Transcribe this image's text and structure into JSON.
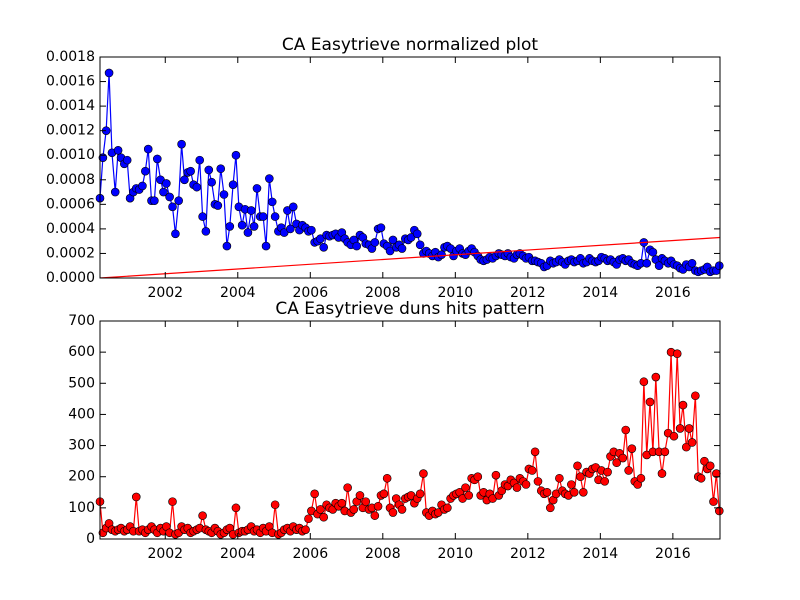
{
  "chart_data": [
    {
      "type": "line",
      "title": "CA Easytrieve normalized plot",
      "x": [
        2000.2,
        2000.28,
        2000.37,
        2000.45,
        2000.53,
        2000.62,
        2000.7,
        2000.78,
        2000.87,
        2000.95,
        2001.03,
        2001.12,
        2001.2,
        2001.28,
        2001.37,
        2001.45,
        2001.53,
        2001.62,
        2001.7,
        2001.78,
        2001.87,
        2001.95,
        2002.03,
        2002.12,
        2002.2,
        2002.28,
        2002.37,
        2002.45,
        2002.53,
        2002.62,
        2002.7,
        2002.78,
        2002.87,
        2002.95,
        2003.03,
        2003.12,
        2003.2,
        2003.28,
        2003.37,
        2003.45,
        2003.53,
        2003.62,
        2003.7,
        2003.78,
        2003.87,
        2003.95,
        2004.03,
        2004.12,
        2004.2,
        2004.28,
        2004.37,
        2004.45,
        2004.53,
        2004.62,
        2004.7,
        2004.78,
        2004.87,
        2004.95,
        2005.03,
        2005.12,
        2005.2,
        2005.28,
        2005.37,
        2005.45,
        2005.53,
        2005.62,
        2005.7,
        2005.78,
        2005.87,
        2005.95,
        2006.03,
        2006.12,
        2006.2,
        2006.28,
        2006.37,
        2006.45,
        2006.53,
        2006.62,
        2006.7,
        2006.78,
        2006.87,
        2006.95,
        2007.03,
        2007.12,
        2007.2,
        2007.28,
        2007.37,
        2007.45,
        2007.53,
        2007.62,
        2007.7,
        2007.78,
        2007.87,
        2007.95,
        2008.03,
        2008.12,
        2008.2,
        2008.28,
        2008.37,
        2008.45,
        2008.53,
        2008.62,
        2008.7,
        2008.78,
        2008.87,
        2008.95,
        2009.03,
        2009.12,
        2009.2,
        2009.28,
        2009.37,
        2009.45,
        2009.53,
        2009.62,
        2009.7,
        2009.78,
        2009.87,
        2009.95,
        2010.03,
        2010.12,
        2010.2,
        2010.28,
        2010.37,
        2010.45,
        2010.53,
        2010.62,
        2010.7,
        2010.78,
        2010.87,
        2010.95,
        2011.03,
        2011.12,
        2011.2,
        2011.28,
        2011.37,
        2011.45,
        2011.53,
        2011.62,
        2011.7,
        2011.78,
        2011.87,
        2011.95,
        2012.03,
        2012.12,
        2012.2,
        2012.28,
        2012.37,
        2012.45,
        2012.53,
        2012.62,
        2012.7,
        2012.78,
        2012.87,
        2012.95,
        2013.03,
        2013.12,
        2013.2,
        2013.28,
        2013.37,
        2013.45,
        2013.53,
        2013.62,
        2013.7,
        2013.78,
        2013.87,
        2013.95,
        2014.03,
        2014.12,
        2014.2,
        2014.28,
        2014.37,
        2014.45,
        2014.53,
        2014.62,
        2014.7,
        2014.78,
        2014.87,
        2014.95,
        2015.03,
        2015.12,
        2015.2,
        2015.28,
        2015.37,
        2015.45,
        2015.53,
        2015.62,
        2015.7,
        2015.78,
        2015.87,
        2015.95,
        2016.03,
        2016.12,
        2016.2,
        2016.28,
        2016.37,
        2016.45,
        2016.53,
        2016.62,
        2016.7,
        2016.78,
        2016.87,
        2016.95,
        2017.03,
        2017.12,
        2017.2,
        2017.28
      ],
      "series": [
        {
          "color": "#0000ff",
          "marker": true,
          "values": [
            0.00065,
            0.00098,
            0.0012,
            0.00167,
            0.00102,
            0.0007,
            0.00104,
            0.00098,
            0.00093,
            0.00096,
            0.00065,
            0.0007,
            0.00073,
            0.00072,
            0.00075,
            0.00087,
            0.00105,
            0.00063,
            0.00063,
            0.00097,
            0.0008,
            0.0007,
            0.00077,
            0.00066,
            0.00058,
            0.00036,
            0.00063,
            0.00109,
            0.0008,
            0.00086,
            0.00087,
            0.00076,
            0.00074,
            0.00096,
            0.0005,
            0.00038,
            0.00088,
            0.00078,
            0.0006,
            0.00059,
            0.00089,
            0.00068,
            0.00026,
            0.00042,
            0.00076,
            0.001,
            0.00058,
            0.00043,
            0.00056,
            0.00037,
            0.00055,
            0.00042,
            0.00073,
            0.0005,
            0.0005,
            0.00026,
            0.00081,
            0.00062,
            0.0005,
            0.00038,
            0.00041,
            0.00037,
            0.00055,
            0.0004,
            0.00058,
            0.00044,
            0.00039,
            0.00043,
            0.00041,
            0.00038,
            0.00039,
            0.00029,
            0.0003,
            0.00032,
            0.00025,
            0.00035,
            0.00034,
            0.00035,
            0.00036,
            0.00033,
            0.00037,
            0.00032,
            0.00029,
            0.00027,
            0.00031,
            0.00026,
            0.00035,
            0.00033,
            0.00028,
            0.00027,
            0.00024,
            0.00029,
            0.0004,
            0.00041,
            0.00028,
            0.00026,
            0.00022,
            0.00031,
            0.00025,
            0.00027,
            0.00024,
            0.00032,
            0.00031,
            0.00033,
            0.00039,
            0.00036,
            0.00027,
            0.0002,
            0.00022,
            0.0002,
            0.00018,
            0.00021,
            0.00017,
            0.00019,
            0.00025,
            0.00026,
            0.00024,
            0.00018,
            0.00022,
            0.00024,
            0.0002,
            0.00019,
            0.00022,
            0.00024,
            0.00021,
            0.00018,
            0.00015,
            0.00014,
            0.00015,
            0.00017,
            0.00016,
            0.00018,
            0.0002,
            0.00019,
            0.00018,
            0.0002,
            0.00017,
            0.00016,
            0.00019,
            0.0002,
            0.00018,
            0.00016,
            0.00017,
            0.00014,
            0.00014,
            0.00013,
            0.00012,
            9e-05,
            0.0001,
            0.00014,
            0.00012,
            0.00013,
            0.00015,
            0.00013,
            0.00011,
            0.00014,
            0.00015,
            0.00013,
            0.00014,
            0.00016,
            0.00012,
            0.00013,
            0.00016,
            0.00014,
            0.00013,
            0.00014,
            0.00017,
            0.00016,
            0.00014,
            0.00015,
            0.00013,
            0.00011,
            0.00015,
            0.00016,
            0.00014,
            0.00015,
            0.00012,
            0.00011,
            0.0001,
            0.00012,
            0.00029,
            0.00012,
            0.00023,
            0.00021,
            0.00015,
            0.0001,
            0.00016,
            0.00014,
            0.00012,
            0.00014,
            0.00011,
            0.0001,
            8e-05,
            7e-05,
            0.00011,
            9e-05,
            0.00012,
            6e-05,
            5e-05,
            6e-05,
            7e-05,
            9e-05,
            5e-05,
            6e-05,
            6e-05,
            0.0001
          ]
        },
        {
          "color": "#ff0000",
          "marker": false,
          "x": [
            2000.2,
            2017.3
          ],
          "values": [
            0,
            0.00033
          ]
        }
      ],
      "xlim": [
        2000.2,
        2017.3
      ],
      "xticks": [
        2002,
        2004,
        2006,
        2008,
        2010,
        2012,
        2014,
        2016
      ],
      "ylim": [
        0,
        0.0018
      ],
      "yticks": [
        {
          "value": 0,
          "label": "0.0000"
        },
        {
          "value": 0.0002,
          "label": "0.0002"
        },
        {
          "value": 0.0004,
          "label": "0.0004"
        },
        {
          "value": 0.0006,
          "label": "0.0006"
        },
        {
          "value": 0.0008,
          "label": "0.0008"
        },
        {
          "value": 0.001,
          "label": "0.0010"
        },
        {
          "value": 0.0012,
          "label": "0.0012"
        },
        {
          "value": 0.0014,
          "label": "0.0014"
        },
        {
          "value": 0.0016,
          "label": "0.0016"
        },
        {
          "value": 0.0018,
          "label": "0.0018"
        }
      ]
    },
    {
      "type": "line",
      "title": "CA Easytrieve duns hits pattern",
      "x": [
        2000.2,
        2000.28,
        2000.37,
        2000.45,
        2000.53,
        2000.62,
        2000.7,
        2000.78,
        2000.87,
        2000.95,
        2001.03,
        2001.12,
        2001.2,
        2001.28,
        2001.37,
        2001.45,
        2001.53,
        2001.62,
        2001.7,
        2001.78,
        2001.87,
        2001.95,
        2002.03,
        2002.12,
        2002.2,
        2002.28,
        2002.37,
        2002.45,
        2002.53,
        2002.62,
        2002.7,
        2002.78,
        2002.87,
        2002.95,
        2003.03,
        2003.12,
        2003.2,
        2003.28,
        2003.37,
        2003.45,
        2003.53,
        2003.62,
        2003.7,
        2003.78,
        2003.87,
        2003.95,
        2004.03,
        2004.12,
        2004.2,
        2004.28,
        2004.37,
        2004.45,
        2004.53,
        2004.62,
        2004.7,
        2004.78,
        2004.87,
        2004.95,
        2005.03,
        2005.12,
        2005.2,
        2005.28,
        2005.37,
        2005.45,
        2005.53,
        2005.62,
        2005.7,
        2005.78,
        2005.87,
        2005.95,
        2006.03,
        2006.12,
        2006.2,
        2006.28,
        2006.37,
        2006.45,
        2006.53,
        2006.62,
        2006.7,
        2006.78,
        2006.87,
        2006.95,
        2007.03,
        2007.12,
        2007.2,
        2007.28,
        2007.37,
        2007.45,
        2007.53,
        2007.62,
        2007.7,
        2007.78,
        2007.87,
        2007.95,
        2008.03,
        2008.12,
        2008.2,
        2008.28,
        2008.37,
        2008.45,
        2008.53,
        2008.62,
        2008.7,
        2008.78,
        2008.87,
        2008.95,
        2009.03,
        2009.12,
        2009.2,
        2009.28,
        2009.37,
        2009.45,
        2009.53,
        2009.62,
        2009.7,
        2009.78,
        2009.87,
        2009.95,
        2010.03,
        2010.12,
        2010.2,
        2010.28,
        2010.37,
        2010.45,
        2010.53,
        2010.62,
        2010.7,
        2010.78,
        2010.87,
        2010.95,
        2011.03,
        2011.12,
        2011.2,
        2011.28,
        2011.37,
        2011.45,
        2011.53,
        2011.62,
        2011.7,
        2011.78,
        2011.87,
        2011.95,
        2012.03,
        2012.12,
        2012.2,
        2012.28,
        2012.37,
        2012.45,
        2012.53,
        2012.62,
        2012.7,
        2012.78,
        2012.87,
        2012.95,
        2013.03,
        2013.12,
        2013.2,
        2013.28,
        2013.37,
        2013.45,
        2013.53,
        2013.62,
        2013.7,
        2013.78,
        2013.87,
        2013.95,
        2014.03,
        2014.12,
        2014.2,
        2014.28,
        2014.37,
        2014.45,
        2014.53,
        2014.62,
        2014.7,
        2014.78,
        2014.87,
        2014.95,
        2015.03,
        2015.12,
        2015.2,
        2015.28,
        2015.37,
        2015.45,
        2015.53,
        2015.62,
        2015.7,
        2015.78,
        2015.87,
        2015.95,
        2016.03,
        2016.12,
        2016.2,
        2016.28,
        2016.37,
        2016.45,
        2016.53,
        2016.62,
        2016.7,
        2016.78,
        2016.87,
        2016.95,
        2017.03,
        2017.12,
        2017.2,
        2017.28
      ],
      "series": [
        {
          "color": "#ff0000",
          "marker": true,
          "values": [
            120,
            20,
            35,
            50,
            30,
            25,
            30,
            35,
            25,
            30,
            40,
            25,
            135,
            25,
            30,
            20,
            30,
            40,
            30,
            20,
            35,
            25,
            40,
            20,
            120,
            15,
            20,
            40,
            30,
            35,
            20,
            25,
            30,
            35,
            75,
            30,
            25,
            20,
            35,
            25,
            15,
            20,
            30,
            35,
            15,
            100,
            20,
            25,
            25,
            30,
            40,
            25,
            30,
            20,
            35,
            25,
            40,
            20,
            110,
            15,
            20,
            30,
            35,
            25,
            40,
            30,
            35,
            25,
            30,
            65,
            90,
            145,
            80,
            95,
            70,
            110,
            100,
            95,
            115,
            105,
            115,
            90,
            165,
            85,
            95,
            120,
            140,
            100,
            120,
            95,
            100,
            75,
            105,
            140,
            145,
            195,
            100,
            85,
            130,
            110,
            95,
            130,
            135,
            140,
            115,
            130,
            145,
            210,
            85,
            75,
            90,
            80,
            85,
            110,
            95,
            100,
            130,
            140,
            145,
            150,
            130,
            165,
            140,
            195,
            190,
            200,
            140,
            150,
            125,
            145,
            130,
            205,
            140,
            155,
            175,
            170,
            190,
            180,
            165,
            195,
            185,
            175,
            225,
            220,
            280,
            185,
            155,
            145,
            150,
            100,
            125,
            145,
            195,
            155,
            145,
            140,
            175,
            150,
            235,
            200,
            150,
            215,
            210,
            225,
            230,
            190,
            220,
            185,
            215,
            265,
            280,
            245,
            275,
            260,
            350,
            220,
            290,
            185,
            175,
            195,
            505,
            270,
            440,
            280,
            520,
            280,
            210,
            280,
            340,
            600,
            330,
            595,
            355,
            430,
            295,
            355,
            310,
            460,
            200,
            195,
            250,
            225,
            235,
            120,
            210,
            90
          ]
        }
      ],
      "xlim": [
        2000.2,
        2017.3
      ],
      "xticks": [
        2002,
        2004,
        2006,
        2008,
        2010,
        2012,
        2014,
        2016
      ],
      "ylim": [
        0,
        700
      ],
      "yticks": [
        0,
        100,
        200,
        300,
        400,
        500,
        600,
        700
      ]
    }
  ]
}
